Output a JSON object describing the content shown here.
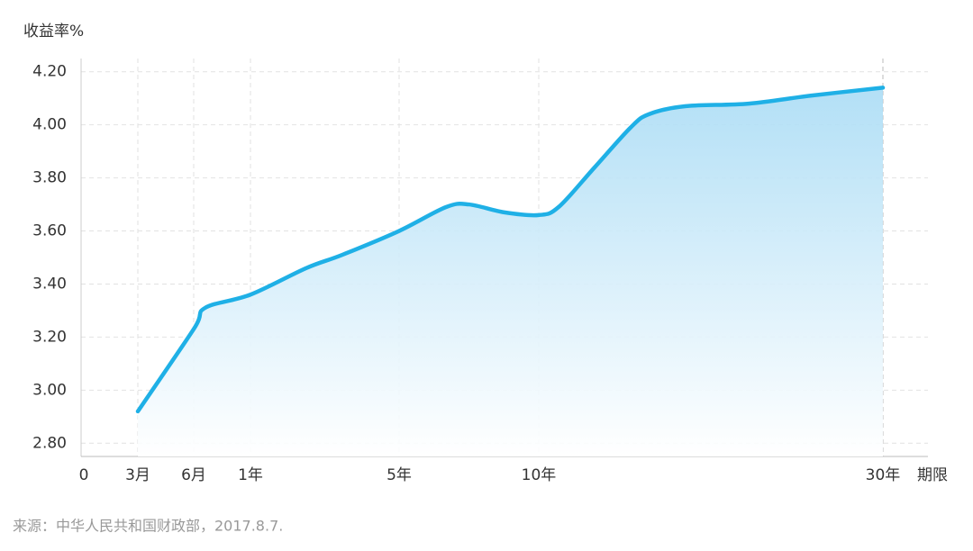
{
  "chart_data": {
    "type": "line",
    "y_label": "收益率%",
    "x_label": "期限",
    "source": "来源：中华人民共和国财政部，2017.8.7.",
    "xticks": [
      {
        "value": 0,
        "label": "0"
      },
      {
        "value": 0.25,
        "label": "3月"
      },
      {
        "value": 0.5,
        "label": "6月"
      },
      {
        "value": 1,
        "label": "1年"
      },
      {
        "value": 5,
        "label": "5年"
      },
      {
        "value": 10,
        "label": "10年"
      },
      {
        "value": 30,
        "label": "30年"
      }
    ],
    "ylim": [
      2.75,
      4.25
    ],
    "yticks": [
      {
        "value": 2.8,
        "label": "2.80"
      },
      {
        "value": 3.0,
        "label": "3.00"
      },
      {
        "value": 3.2,
        "label": "3.20"
      },
      {
        "value": 3.4,
        "label": "3.40"
      },
      {
        "value": 3.6,
        "label": "3.60"
      },
      {
        "value": 3.8,
        "label": "3.80"
      },
      {
        "value": 4.0,
        "label": "4.00"
      },
      {
        "value": 4.2,
        "label": "4.20"
      }
    ],
    "grid": true,
    "series": [
      {
        "color": "#1fb0e6",
        "x": [
          0.25,
          0.5,
          0.6,
          1,
          2.5,
          3.47,
          5,
          6.68,
          7.5,
          8.77,
          10,
          11.15,
          13.25,
          15.34,
          16.4,
          18.5,
          22.2,
          25.8,
          30
        ],
        "values": [
          2.92,
          3.23,
          3.31,
          3.36,
          3.46,
          3.51,
          3.6,
          3.69,
          3.7,
          3.67,
          3.66,
          3.69,
          3.84,
          3.99,
          4.04,
          4.07,
          4.08,
          4.11,
          4.14
        ]
      }
    ]
  }
}
